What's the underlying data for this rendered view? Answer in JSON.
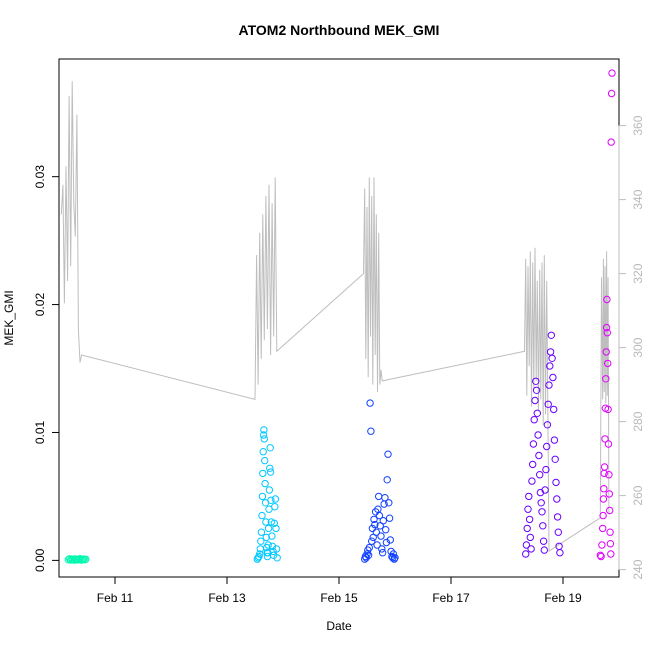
{
  "chart_data": {
    "type": "scatter",
    "title": "ATOM2 Northbound MEK_GMI",
    "xlabel": "Date",
    "ylabel": "MEK_GMI",
    "x_axis_type": "date",
    "xlim": [
      "2024-02-10T00:00",
      "2024-02-20T00:00"
    ],
    "x_ticks": [
      {
        "value": "2024-02-11",
        "label": "Feb 11"
      },
      {
        "value": "2024-02-13",
        "label": "Feb 13"
      },
      {
        "value": "2024-02-15",
        "label": "Feb 15"
      },
      {
        "value": "2024-02-17",
        "label": "Feb 17"
      },
      {
        "value": "2024-02-19",
        "label": "Feb 19"
      }
    ],
    "ylim": [
      -0.0013,
      0.0392
    ],
    "y_ticks": [
      0.0,
      0.01,
      0.02,
      0.03
    ],
    "y_tick_labels": [
      "0.00",
      "0.01",
      "0.02",
      "0.03"
    ],
    "y2_lim": [
      238,
      378
    ],
    "y2_ticks": [
      240,
      260,
      280,
      300,
      320,
      340,
      360
    ],
    "y2_tick_labels": [
      "240",
      "260",
      "280",
      "300",
      "320",
      "340",
      "360"
    ],
    "grid": false,
    "legend": "none",
    "colors": {
      "line": "#bebebe",
      "axis": "#000000",
      "right_axis": "#bebebe"
    },
    "series": [
      {
        "color": "#00f7b0",
        "marker": "open-circle",
        "x": [
          "2024-02-10T04:00",
          "2024-02-10T04:30",
          "2024-02-10T05:00",
          "2024-02-10T05:30",
          "2024-02-10T06:00",
          "2024-02-10T06:30",
          "2024-02-10T07:00",
          "2024-02-10T07:30",
          "2024-02-10T08:00",
          "2024-02-10T08:30",
          "2024-02-10T09:00",
          "2024-02-10T09:30",
          "2024-02-10T10:00",
          "2024-02-10T10:30",
          "2024-02-10T11:00",
          "2024-02-10T11:30"
        ],
        "y": [
          5e-05,
          0.00012,
          3e-05,
          0.0001,
          8e-05,
          2e-05,
          0.00011,
          6e-05,
          4e-05,
          9e-05,
          0.00013,
          3e-05,
          7e-05,
          0.0001,
          5e-05,
          8e-05
        ]
      },
      {
        "color": "#00c8ff",
        "marker": "open-circle",
        "x": [
          "2024-02-13T13:00",
          "2024-02-13T13:20",
          "2024-02-13T13:40",
          "2024-02-13T14:00",
          "2024-02-13T14:15",
          "2024-02-13T14:30",
          "2024-02-13T14:45",
          "2024-02-13T15:00",
          "2024-02-13T15:10",
          "2024-02-13T15:20",
          "2024-02-13T15:30",
          "2024-02-13T15:40",
          "2024-02-13T15:50",
          "2024-02-13T16:00",
          "2024-02-13T16:10",
          "2024-02-13T16:20",
          "2024-02-13T16:30",
          "2024-02-13T16:40",
          "2024-02-13T16:50",
          "2024-02-13T17:00",
          "2024-02-13T17:10",
          "2024-02-13T17:20",
          "2024-02-13T17:30",
          "2024-02-13T17:40",
          "2024-02-13T17:50",
          "2024-02-13T18:00",
          "2024-02-13T18:10",
          "2024-02-13T18:20",
          "2024-02-13T18:30",
          "2024-02-13T18:40",
          "2024-02-13T18:50",
          "2024-02-13T19:00",
          "2024-02-13T19:15",
          "2024-02-13T19:30",
          "2024-02-13T19:45",
          "2024-02-13T20:00",
          "2024-02-13T20:15",
          "2024-02-13T20:30",
          "2024-02-13T20:45",
          "2024-02-13T21:00",
          "2024-02-13T21:15",
          "2024-02-13T21:30"
        ],
        "y": [
          0.0001,
          0.0002,
          0.0003,
          0.0005,
          0.0009,
          0.0015,
          0.0022,
          0.0035,
          0.005,
          0.0068,
          0.0085,
          0.0098,
          0.0102,
          0.0095,
          0.0078,
          0.006,
          0.0045,
          0.003,
          0.0018,
          0.001,
          0.0006,
          0.0003,
          0.0006,
          0.0012,
          0.0025,
          0.004,
          0.0055,
          0.0072,
          0.0088,
          0.0069,
          0.0047,
          0.003,
          0.0019,
          0.0011,
          0.0007,
          0.0004,
          0.0029,
          0.0042,
          0.0048,
          0.0025,
          0.0009,
          0.0002
        ]
      },
      {
        "color": "#1040ff",
        "marker": "open-circle",
        "x": [
          "2024-02-15T11:00",
          "2024-02-15T11:20",
          "2024-02-15T11:40",
          "2024-02-15T12:00",
          "2024-02-15T12:20",
          "2024-02-15T12:40",
          "2024-02-15T13:00",
          "2024-02-15T13:20",
          "2024-02-15T13:40",
          "2024-02-15T14:00",
          "2024-02-15T14:20",
          "2024-02-15T14:40",
          "2024-02-15T15:00",
          "2024-02-15T15:20",
          "2024-02-15T15:40",
          "2024-02-15T16:00",
          "2024-02-15T16:20",
          "2024-02-15T16:40",
          "2024-02-15T17:00",
          "2024-02-15T17:20",
          "2024-02-15T17:40",
          "2024-02-15T18:00",
          "2024-02-15T18:20",
          "2024-02-15T18:40",
          "2024-02-15T19:00",
          "2024-02-15T19:20",
          "2024-02-15T19:40",
          "2024-02-15T20:00",
          "2024-02-15T20:20",
          "2024-02-15T20:40",
          "2024-02-15T21:00",
          "2024-02-15T21:20",
          "2024-02-15T21:40",
          "2024-02-15T22:00",
          "2024-02-15T22:20",
          "2024-02-15T22:40",
          "2024-02-15T23:00",
          "2024-02-15T23:20",
          "2024-02-15T23:40",
          "2024-02-16T00:00"
        ],
        "y": [
          0.0001,
          0.0003,
          0.0002,
          0.0005,
          0.0008,
          0.0004,
          0.001,
          0.0123,
          0.0101,
          0.0015,
          0.0025,
          0.0018,
          0.0032,
          0.0028,
          0.0038,
          0.0022,
          0.0012,
          0.004,
          0.005,
          0.0035,
          0.0027,
          0.0019,
          0.0009,
          0.0006,
          0.0031,
          0.0044,
          0.0049,
          0.0024,
          0.0014,
          0.0063,
          0.0083,
          0.0045,
          0.0033,
          0.0016,
          0.0007,
          0.0003,
          0.0002,
          0.0005,
          0.0001,
          0.0002
        ]
      },
      {
        "color": "#6a00ff",
        "marker": "open-circle",
        "x": [
          "2024-02-18T08:00",
          "2024-02-18T08:20",
          "2024-02-18T08:40",
          "2024-02-18T09:00",
          "2024-02-18T09:20",
          "2024-02-18T09:40",
          "2024-02-18T10:00",
          "2024-02-18T10:20",
          "2024-02-18T10:40",
          "2024-02-18T11:00",
          "2024-02-18T11:20",
          "2024-02-18T11:40",
          "2024-02-18T12:00",
          "2024-02-18T12:20",
          "2024-02-18T12:40",
          "2024-02-18T13:00",
          "2024-02-18T13:20",
          "2024-02-18T13:40",
          "2024-02-18T14:00",
          "2024-02-18T14:20",
          "2024-02-18T14:40",
          "2024-02-18T15:00",
          "2024-02-18T15:20",
          "2024-02-18T15:40",
          "2024-02-18T16:00",
          "2024-02-18T16:20",
          "2024-02-18T16:40",
          "2024-02-18T17:00",
          "2024-02-18T17:20",
          "2024-02-18T17:40",
          "2024-02-18T18:00",
          "2024-02-18T18:20",
          "2024-02-18T18:40",
          "2024-02-18T19:00",
          "2024-02-18T19:20",
          "2024-02-18T19:40",
          "2024-02-18T20:00",
          "2024-02-18T20:20",
          "2024-02-18T20:40",
          "2024-02-18T21:00",
          "2024-02-18T21:20",
          "2024-02-18T21:40",
          "2024-02-18T22:00",
          "2024-02-18T22:20",
          "2024-02-18T22:40"
        ],
        "y": [
          0.0005,
          0.0012,
          0.0025,
          0.004,
          0.005,
          0.0032,
          0.0018,
          0.0009,
          0.0062,
          0.0075,
          0.0091,
          0.011,
          0.0125,
          0.014,
          0.0133,
          0.0115,
          0.0098,
          0.0082,
          0.0067,
          0.0053,
          0.0045,
          0.0038,
          0.0027,
          0.0015,
          0.0008,
          0.0055,
          0.0071,
          0.0089,
          0.0106,
          0.0122,
          0.0137,
          0.0152,
          0.0163,
          0.0176,
          0.0158,
          0.0143,
          0.0118,
          0.0094,
          0.0079,
          0.0061,
          0.0048,
          0.0034,
          0.0022,
          0.0011,
          0.0006
        ]
      },
      {
        "color": "#e000ff",
        "marker": "open-circle",
        "x": [
          "2024-02-19T16:00",
          "2024-02-19T16:20",
          "2024-02-19T16:40",
          "2024-02-19T17:00",
          "2024-02-19T17:10",
          "2024-02-19T17:20",
          "2024-02-19T17:30",
          "2024-02-19T17:40",
          "2024-02-19T17:50",
          "2024-02-19T18:00",
          "2024-02-19T18:10",
          "2024-02-19T18:20",
          "2024-02-19T18:30",
          "2024-02-19T18:40",
          "2024-02-19T18:50",
          "2024-02-19T19:00",
          "2024-02-19T19:10",
          "2024-02-19T19:20",
          "2024-02-19T19:30",
          "2024-02-19T19:40",
          "2024-02-19T19:50",
          "2024-02-19T20:00",
          "2024-02-19T20:10",
          "2024-02-19T20:20",
          "2024-02-19T20:30",
          "2024-02-19T20:40",
          "2024-02-19T20:50",
          "2024-02-19T21:00"
        ],
        "y": [
          0.0004,
          0.0003,
          0.0012,
          0.0025,
          0.0035,
          0.0048,
          0.0056,
          0.0068,
          0.0073,
          0.0095,
          0.0119,
          0.0142,
          0.0163,
          0.0182,
          0.0204,
          0.0178,
          0.0154,
          0.0118,
          0.0091,
          0.0067,
          0.0052,
          0.0039,
          0.0022,
          0.0013,
          0.0005,
          0.0327,
          0.0365,
          0.0381
        ]
      }
    ],
    "secondary_series": {
      "axis": "right",
      "color": "#bebebe",
      "type": "line",
      "x": [
        "2024-02-10T01:00",
        "2024-02-10T01:40",
        "2024-02-10T02:20",
        "2024-02-10T03:00",
        "2024-02-10T03:40",
        "2024-02-10T04:20",
        "2024-02-10T05:00",
        "2024-02-10T05:40",
        "2024-02-10T06:20",
        "2024-02-10T07:00",
        "2024-02-10T07:40",
        "2024-02-10T08:20",
        "2024-02-10T09:00",
        "2024-02-10T09:40",
        "2024-02-13T12:00",
        "2024-02-13T12:40",
        "2024-02-13T13:20",
        "2024-02-13T14:00",
        "2024-02-13T14:40",
        "2024-02-13T15:20",
        "2024-02-13T16:00",
        "2024-02-13T16:40",
        "2024-02-13T17:20",
        "2024-02-13T18:00",
        "2024-02-13T18:40",
        "2024-02-13T19:20",
        "2024-02-13T20:00",
        "2024-02-13T20:40",
        "2024-02-13T21:20",
        "2024-02-15T10:30",
        "2024-02-15T11:00",
        "2024-02-15T11:30",
        "2024-02-15T12:00",
        "2024-02-15T12:30",
        "2024-02-15T13:00",
        "2024-02-15T13:30",
        "2024-02-15T14:00",
        "2024-02-15T14:30",
        "2024-02-15T15:00",
        "2024-02-15T15:30",
        "2024-02-15T16:00",
        "2024-02-15T16:30",
        "2024-02-15T17:00",
        "2024-02-15T17:30",
        "2024-02-15T18:00",
        "2024-02-15T18:30",
        "2024-02-18T07:30",
        "2024-02-18T08:00",
        "2024-02-18T08:30",
        "2024-02-18T09:00",
        "2024-02-18T09:30",
        "2024-02-18T10:00",
        "2024-02-18T10:30",
        "2024-02-18T11:00",
        "2024-02-18T11:30",
        "2024-02-18T12:00",
        "2024-02-18T12:30",
        "2024-02-18T13:00",
        "2024-02-18T13:30",
        "2024-02-18T14:00",
        "2024-02-18T14:30",
        "2024-02-18T15:00",
        "2024-02-18T15:30",
        "2024-02-18T16:00",
        "2024-02-18T16:30",
        "2024-02-18T17:00",
        "2024-02-18T17:30",
        "2024-02-18T18:00",
        "2024-02-19T16:00",
        "2024-02-19T16:30",
        "2024-02-19T17:00",
        "2024-02-19T17:20",
        "2024-02-19T17:40",
        "2024-02-19T18:00",
        "2024-02-19T18:20",
        "2024-02-19T18:40",
        "2024-02-19T19:00",
        "2024-02-19T19:20",
        "2024-02-19T19:40"
      ],
      "y": [
        336,
        344,
        312,
        349,
        318,
        368,
        322,
        372,
        339,
        330,
        363,
        305,
        296,
        298,
        286,
        325,
        290,
        331,
        297,
        336,
        302,
        341,
        305,
        344,
        298,
        339,
        303,
        346,
        299,
        320,
        343,
        297,
        338,
        292,
        346,
        303,
        341,
        290,
        346,
        298,
        336,
        288,
        331,
        290,
        294,
        291,
        299,
        324,
        287,
        322,
        295,
        326,
        284,
        323,
        289,
        327,
        291,
        318,
        283,
        321,
        286,
        323,
        279,
        325,
        282,
        318,
        285,
        245,
        254,
        319,
        286,
        324,
        288,
        322,
        285,
        326,
        287,
        319,
        255
      ]
    }
  }
}
